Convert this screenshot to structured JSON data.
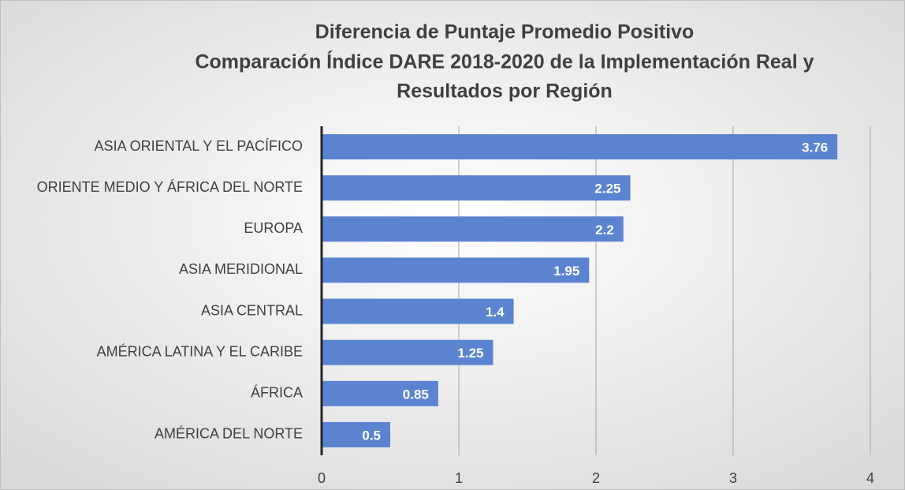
{
  "chart_data": {
    "type": "barh",
    "title": [
      "Diferencia de Puntaje Promedio Positivo",
      "Comparación Índice DARE 2018-2020 de la Implementación Real y",
      "Resultados por Región"
    ],
    "categories": [
      "ASIA ORIENTAL Y EL PACÍFICO",
      "ORIENTE MEDIO Y ÁFRICA DEL NORTE",
      "EUROPA",
      "ASIA MERIDIONAL",
      "ASIA CENTRAL",
      "AMÉRICA LATINA Y EL CARIBE",
      "ÁFRICA",
      "AMÉRICA DEL NORTE"
    ],
    "values": [
      3.76,
      2.25,
      2.2,
      1.95,
      1.4,
      1.25,
      0.85,
      0.5
    ],
    "color": "#5b84d0",
    "xlim": [
      0,
      4
    ],
    "xticks": [
      0,
      1,
      2,
      3,
      4
    ],
    "grid": true
  }
}
